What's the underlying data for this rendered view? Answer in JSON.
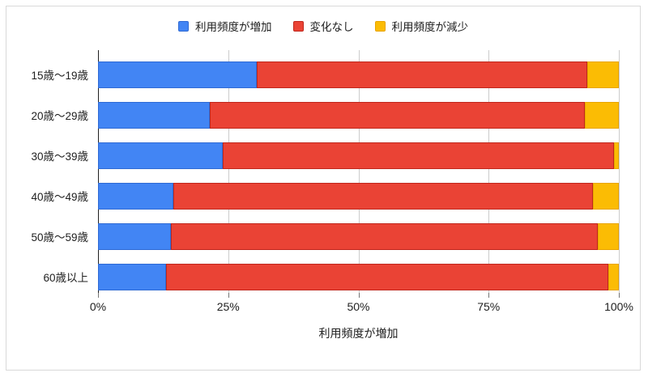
{
  "chart_data": {
    "type": "bar",
    "orientation": "horizontal",
    "stacked": true,
    "title": "",
    "categories": [
      "15歳〜19歳",
      "20歳〜29歳",
      "30歳〜39歳",
      "40歳〜49歳",
      "50歳〜59歳",
      "60歳以上"
    ],
    "series": [
      {
        "name": "利用頻度が増加",
        "color": "#4285F4",
        "border_color": "#2f6ad4",
        "values": [
          30.5,
          21.5,
          24,
          14.5,
          14,
          13
        ]
      },
      {
        "name": "変化なし",
        "color": "#EA4335",
        "border_color": "#c0271d",
        "values": [
          63.5,
          72,
          75,
          80.5,
          82,
          85
        ]
      },
      {
        "name": "利用頻度が減少",
        "color": "#FBBC04",
        "border_color": "#e8a400",
        "values": [
          6,
          6.5,
          1,
          5,
          4,
          2
        ]
      }
    ],
    "xlabel": "利用頻度が増加",
    "ylabel": "",
    "x_ticks": [
      "0%",
      "25%",
      "50%",
      "75%",
      "100%"
    ],
    "xlim": [
      0,
      100
    ],
    "legend_position": "top",
    "grid": "vertical-only",
    "gridline_color": "#cccccc",
    "axis_line_color": "#212121",
    "frame_border_color": "#d9d9d9",
    "background_color": "#ffffff"
  }
}
